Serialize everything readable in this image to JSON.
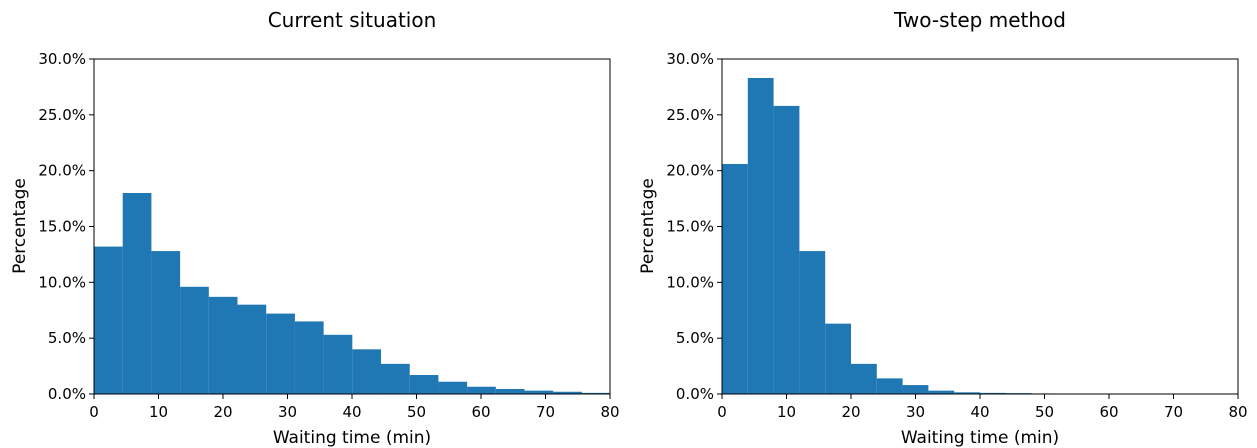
{
  "chart_data": [
    {
      "type": "bar",
      "title": "Current situation",
      "xlabel": "Waiting time (min)",
      "ylabel": "Percentage",
      "xlim": [
        0,
        80
      ],
      "ylim": [
        0,
        30
      ],
      "xticks": [
        "0",
        "10",
        "20",
        "30",
        "40",
        "50",
        "60",
        "70",
        "80"
      ],
      "yticks": [
        "0.0%",
        "5.0%",
        "10.0%",
        "15.0%",
        "20.0%",
        "25.0%",
        "30.0%"
      ],
      "bar_color": "#1f77b4",
      "grid": false,
      "bins": [
        {
          "x0": 0.0,
          "x1": 4.45,
          "value": 13.2
        },
        {
          "x0": 4.45,
          "x1": 8.9,
          "value": 18.0
        },
        {
          "x0": 8.9,
          "x1": 13.35,
          "value": 12.8
        },
        {
          "x0": 13.35,
          "x1": 17.8,
          "value": 9.6
        },
        {
          "x0": 17.8,
          "x1": 22.25,
          "value": 8.7
        },
        {
          "x0": 22.25,
          "x1": 26.7,
          "value": 8.0
        },
        {
          "x0": 26.7,
          "x1": 31.15,
          "value": 7.2
        },
        {
          "x0": 31.15,
          "x1": 35.6,
          "value": 6.5
        },
        {
          "x0": 35.6,
          "x1": 40.05,
          "value": 5.3
        },
        {
          "x0": 40.05,
          "x1": 44.5,
          "value": 4.0
        },
        {
          "x0": 44.5,
          "x1": 48.95,
          "value": 2.7
        },
        {
          "x0": 48.95,
          "x1": 53.4,
          "value": 1.7
        },
        {
          "x0": 53.4,
          "x1": 57.85,
          "value": 1.1
        },
        {
          "x0": 57.85,
          "x1": 62.3,
          "value": 0.65
        },
        {
          "x0": 62.3,
          "x1": 66.75,
          "value": 0.45
        },
        {
          "x0": 66.75,
          "x1": 71.2,
          "value": 0.3
        },
        {
          "x0": 71.2,
          "x1": 75.65,
          "value": 0.2
        },
        {
          "x0": 75.65,
          "x1": 80.1,
          "value": 0.1
        }
      ]
    },
    {
      "type": "bar",
      "title": "Two-step method",
      "xlabel": "Waiting time (min)",
      "ylabel": "Percentage",
      "xlim": [
        0,
        80
      ],
      "ylim": [
        0,
        30
      ],
      "xticks": [
        "0",
        "10",
        "20",
        "30",
        "40",
        "50",
        "60",
        "70",
        "80"
      ],
      "yticks": [
        "0.0%",
        "5.0%",
        "10.0%",
        "15.0%",
        "20.0%",
        "25.0%",
        "30.0%"
      ],
      "bar_color": "#1f77b4",
      "grid": false,
      "bins": [
        {
          "x0": 0.0,
          "x1": 4.0,
          "value": 20.6
        },
        {
          "x0": 4.0,
          "x1": 8.0,
          "value": 28.3
        },
        {
          "x0": 8.0,
          "x1": 12.0,
          "value": 25.8
        },
        {
          "x0": 12.0,
          "x1": 16.0,
          "value": 12.8
        },
        {
          "x0": 16.0,
          "x1": 20.0,
          "value": 6.3
        },
        {
          "x0": 20.0,
          "x1": 24.0,
          "value": 2.7
        },
        {
          "x0": 24.0,
          "x1": 28.0,
          "value": 1.4
        },
        {
          "x0": 28.0,
          "x1": 32.0,
          "value": 0.8
        },
        {
          "x0": 32.0,
          "x1": 36.0,
          "value": 0.3
        },
        {
          "x0": 36.0,
          "x1": 40.0,
          "value": 0.15
        },
        {
          "x0": 40.0,
          "x1": 44.0,
          "value": 0.1
        },
        {
          "x0": 44.0,
          "x1": 48.0,
          "value": 0.08
        },
        {
          "x0": 48.0,
          "x1": 52.0,
          "value": 0.05
        },
        {
          "x0": 52.0,
          "x1": 56.0,
          "value": 0.04
        },
        {
          "x0": 56.0,
          "x1": 60.0,
          "value": 0.03
        },
        {
          "x0": 60.0,
          "x1": 64.0,
          "value": 0.02
        },
        {
          "x0": 64.0,
          "x1": 68.0,
          "value": 0.02
        },
        {
          "x0": 68.0,
          "x1": 72.0,
          "value": 0.01
        },
        {
          "x0": 72.0,
          "x1": 76.0,
          "value": 0.01
        },
        {
          "x0": 76.0,
          "x1": 80.0,
          "value": 0.01
        }
      ]
    }
  ]
}
